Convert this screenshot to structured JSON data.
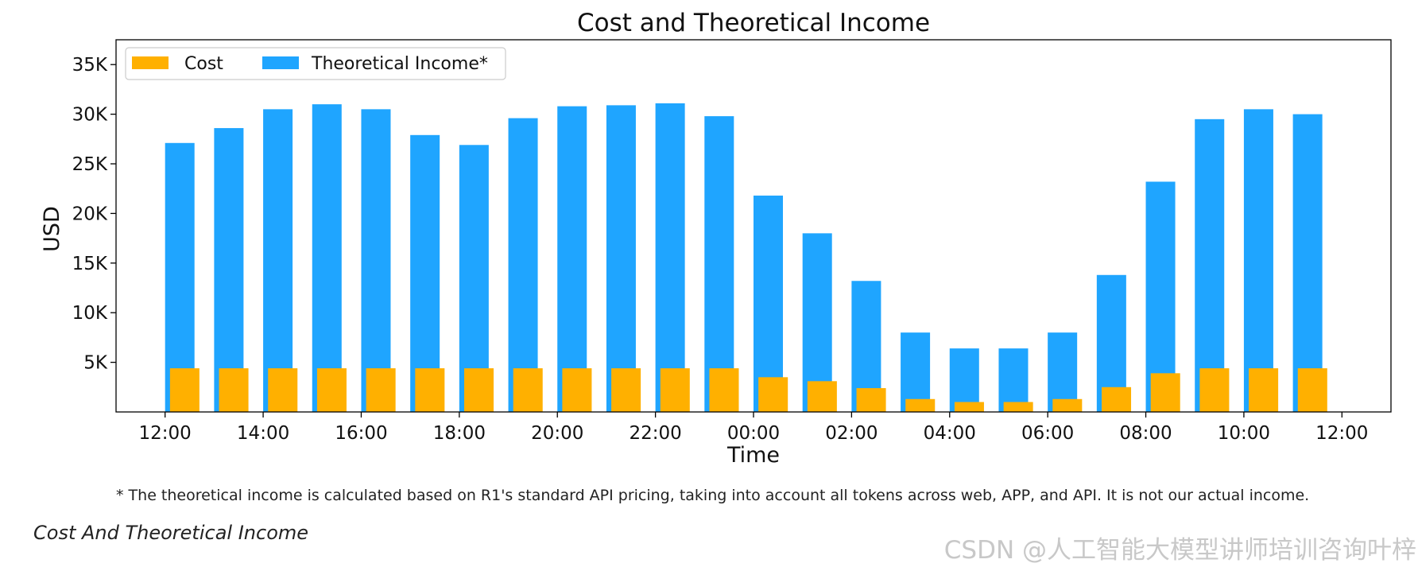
{
  "chart_data": {
    "type": "bar",
    "title": "Cost and Theoretical Income",
    "xlabel": "Time",
    "ylabel": "USD",
    "x_tick_labels": [
      "12:00",
      "14:00",
      "16:00",
      "18:00",
      "20:00",
      "22:00",
      "00:00",
      "02:00",
      "04:00",
      "06:00",
      "08:00",
      "10:00",
      "12:00"
    ],
    "y_tick_labels": [
      "5K",
      "10K",
      "15K",
      "20K",
      "25K",
      "30K",
      "35K"
    ],
    "y_ticks": [
      5000,
      10000,
      15000,
      20000,
      25000,
      30000,
      35000
    ],
    "ylim": [
      0,
      37500
    ],
    "x_hours_range": [
      -1,
      25
    ],
    "categories": [
      "12:00",
      "13:00",
      "14:00",
      "15:00",
      "16:00",
      "17:00",
      "18:00",
      "19:00",
      "20:00",
      "21:00",
      "22:00",
      "23:00",
      "00:00",
      "01:00",
      "02:00",
      "03:00",
      "04:00",
      "05:00",
      "06:00",
      "07:00",
      "08:00",
      "09:00",
      "10:00",
      "11:00"
    ],
    "series": [
      {
        "name": "Cost",
        "color": "#FFB000",
        "values": [
          4400,
          4400,
          4400,
          4400,
          4400,
          4400,
          4400,
          4400,
          4400,
          4400,
          4400,
          4400,
          3500,
          3100,
          2400,
          1300,
          1000,
          1000,
          1300,
          2500,
          3900,
          4400,
          4400,
          4400
        ]
      },
      {
        "name": "Theoretical Income*",
        "color": "#1FA5FF",
        "values": [
          27100,
          28600,
          30500,
          31000,
          30500,
          27900,
          26900,
          29600,
          30800,
          30900,
          31100,
          29800,
          21800,
          18000,
          13200,
          8000,
          6400,
          6400,
          8000,
          13800,
          23200,
          29500,
          30500,
          30000
        ]
      }
    ],
    "legend_position": "top-left",
    "grid": false
  },
  "footnote": "* The theoretical income is calculated based on R1's standard API pricing, taking into account all tokens across web, APP, and API. It is not our actual income.",
  "caption": "Cost And Theoretical Income",
  "watermark": "CSDN @人工智能大模型讲师培训咨询叶梓"
}
